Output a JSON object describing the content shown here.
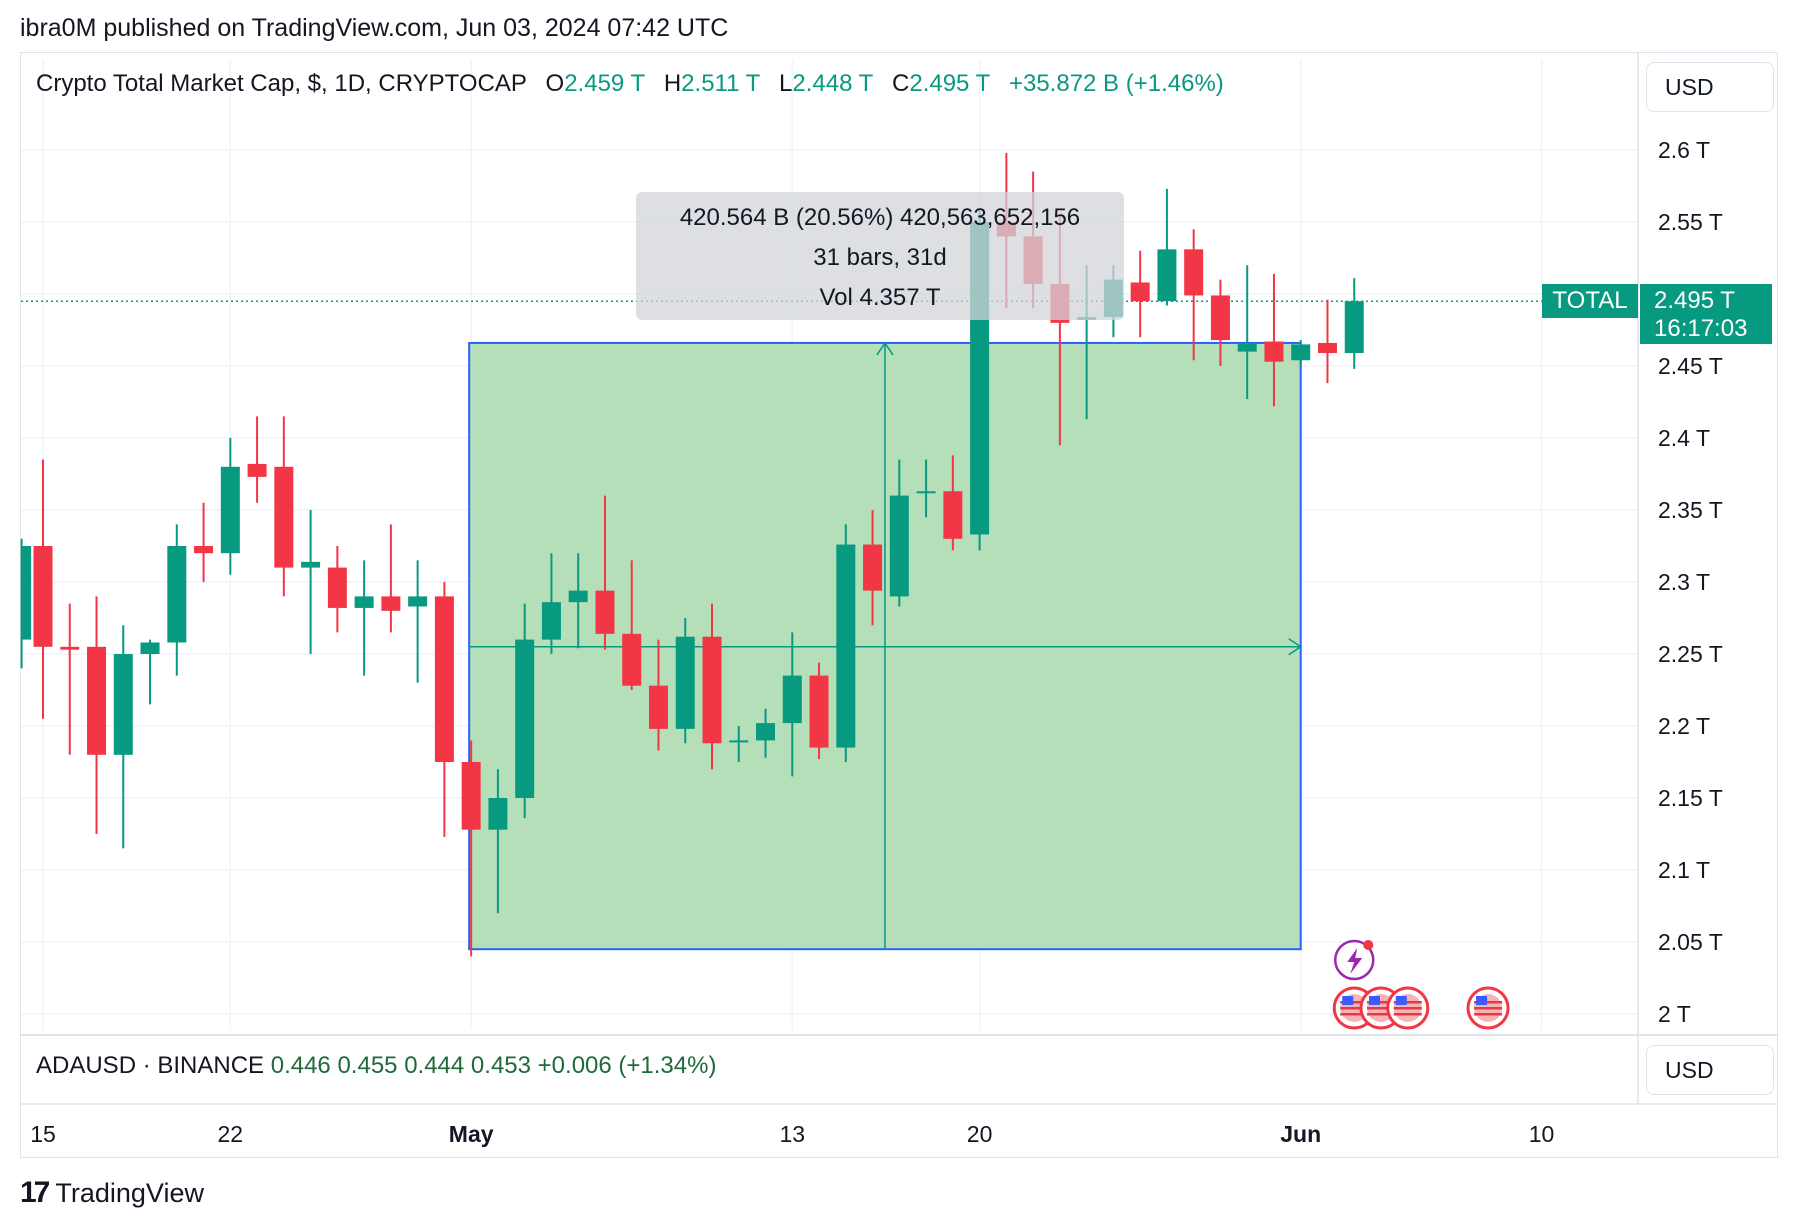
{
  "header": {
    "publisher_line": "ibra0M published on TradingView.com, Jun 03, 2024 07:42 UTC"
  },
  "legend": {
    "symbol": "Crypto Total Market Cap, $, 1D, CRYPTOCAP",
    "o_label": "O",
    "o": "2.459 T",
    "h_label": "H",
    "h": "2.511 T",
    "l_label": "L",
    "l": "2.448 T",
    "c_label": "C",
    "c": "2.495 T",
    "change": "+35.872 B (+1.46%)"
  },
  "currency": {
    "main": "USD",
    "sub": "USD"
  },
  "tooltip": {
    "line1": "420.564 B (20.56%) 420,563,652,156",
    "line2": "31 bars, 31d",
    "line3": "Vol 4.357 T"
  },
  "price_tags": {
    "symbol_label": "TOTAL",
    "last_price": "2.495 T",
    "countdown": "16:17:03"
  },
  "sub_legend": {
    "symbol": "ADAUSD · BINANCE",
    "o": "0.446",
    "h": "0.455",
    "l": "0.444",
    "c": "0.453",
    "change": "+0.006 (+1.34%)"
  },
  "footer": {
    "brand": "TradingView",
    "logo_mark": "17"
  },
  "colors": {
    "up": "#089981",
    "down": "#f23645",
    "range_fill": "#b5dfb8",
    "range_border": "#2962ff"
  },
  "chart_data": {
    "type": "candlestick",
    "title": "Crypto Total Market Cap, $, 1D, CRYPTOCAP",
    "unit": "T",
    "y_ticks": [
      "2.6 T",
      "2.55 T",
      "2.5 T",
      "2.45 T",
      "2.4 T",
      "2.35 T",
      "2.3 T",
      "2.25 T",
      "2.2 T",
      "2.15 T",
      "2.1 T",
      "2.05 T",
      "2 T"
    ],
    "y_tick_values": [
      2.6,
      2.55,
      2.5,
      2.45,
      2.4,
      2.35,
      2.3,
      2.25,
      2.2,
      2.15,
      2.1,
      2.05,
      2.0
    ],
    "ylim": [
      1.99,
      2.63
    ],
    "x_ticks": [
      {
        "label": "15",
        "day": 0,
        "bold": false
      },
      {
        "label": "22",
        "day": 7,
        "bold": false
      },
      {
        "label": "May",
        "day": 16,
        "bold": true
      },
      {
        "label": "13",
        "day": 28,
        "bold": false
      },
      {
        "label": "20",
        "day": 35,
        "bold": false
      },
      {
        "label": "Jun",
        "day": 47,
        "bold": true
      },
      {
        "label": "10",
        "day": 56,
        "bold": false
      }
    ],
    "x_range_days": [
      -0.8,
      59.5
    ],
    "grid": true,
    "last_price": 2.495,
    "candles": [
      {
        "day": -0.8,
        "o": 2.26,
        "h": 2.33,
        "l": 2.24,
        "c": 2.325
      },
      {
        "day": 0,
        "o": 2.325,
        "h": 2.385,
        "l": 2.205,
        "c": 2.255
      },
      {
        "day": 1,
        "o": 2.255,
        "h": 2.285,
        "l": 2.18,
        "c": 2.253
      },
      {
        "day": 2,
        "o": 2.255,
        "h": 2.29,
        "l": 2.125,
        "c": 2.18
      },
      {
        "day": 3,
        "o": 2.18,
        "h": 2.27,
        "l": 2.115,
        "c": 2.25
      },
      {
        "day": 4,
        "o": 2.25,
        "h": 2.26,
        "l": 2.215,
        "c": 2.258
      },
      {
        "day": 5,
        "o": 2.258,
        "h": 2.34,
        "l": 2.235,
        "c": 2.325
      },
      {
        "day": 6,
        "o": 2.325,
        "h": 2.355,
        "l": 2.3,
        "c": 2.32
      },
      {
        "day": 7,
        "o": 2.32,
        "h": 2.4,
        "l": 2.305,
        "c": 2.38
      },
      {
        "day": 8,
        "o": 2.382,
        "h": 2.415,
        "l": 2.355,
        "c": 2.373
      },
      {
        "day": 9,
        "o": 2.38,
        "h": 2.415,
        "l": 2.29,
        "c": 2.31
      },
      {
        "day": 10,
        "o": 2.31,
        "h": 2.35,
        "l": 2.25,
        "c": 2.314
      },
      {
        "day": 11,
        "o": 2.31,
        "h": 2.325,
        "l": 2.265,
        "c": 2.282
      },
      {
        "day": 12,
        "o": 2.282,
        "h": 2.315,
        "l": 2.235,
        "c": 2.29
      },
      {
        "day": 13,
        "o": 2.29,
        "h": 2.34,
        "l": 2.265,
        "c": 2.28
      },
      {
        "day": 14,
        "o": 2.283,
        "h": 2.315,
        "l": 2.23,
        "c": 2.29
      },
      {
        "day": 15,
        "o": 2.29,
        "h": 2.3,
        "l": 2.123,
        "c": 2.175
      },
      {
        "day": 16,
        "o": 2.175,
        "h": 2.19,
        "l": 2.04,
        "c": 2.128
      },
      {
        "day": 17,
        "o": 2.128,
        "h": 2.17,
        "l": 2.07,
        "c": 2.15
      },
      {
        "day": 18,
        "o": 2.15,
        "h": 2.285,
        "l": 2.136,
        "c": 2.26
      },
      {
        "day": 19,
        "o": 2.26,
        "h": 2.32,
        "l": 2.25,
        "c": 2.286
      },
      {
        "day": 20,
        "o": 2.286,
        "h": 2.32,
        "l": 2.254,
        "c": 2.294
      },
      {
        "day": 21,
        "o": 2.294,
        "h": 2.36,
        "l": 2.253,
        "c": 2.264
      },
      {
        "day": 22,
        "o": 2.264,
        "h": 2.315,
        "l": 2.225,
        "c": 2.228
      },
      {
        "day": 23,
        "o": 2.228,
        "h": 2.26,
        "l": 2.183,
        "c": 2.198
      },
      {
        "day": 24,
        "o": 2.198,
        "h": 2.275,
        "l": 2.188,
        "c": 2.262
      },
      {
        "day": 25,
        "o": 2.262,
        "h": 2.285,
        "l": 2.17,
        "c": 2.188
      },
      {
        "day": 26,
        "o": 2.19,
        "h": 2.2,
        "l": 2.175,
        "c": 2.19
      },
      {
        "day": 27,
        "o": 2.19,
        "h": 2.212,
        "l": 2.178,
        "c": 2.202
      },
      {
        "day": 28,
        "o": 2.202,
        "h": 2.265,
        "l": 2.165,
        "c": 2.235
      },
      {
        "day": 29,
        "o": 2.235,
        "h": 2.244,
        "l": 2.177,
        "c": 2.185
      },
      {
        "day": 30,
        "o": 2.185,
        "h": 2.34,
        "l": 2.175,
        "c": 2.326
      },
      {
        "day": 31,
        "o": 2.326,
        "h": 2.35,
        "l": 2.27,
        "c": 2.294
      },
      {
        "day": 32,
        "o": 2.29,
        "h": 2.385,
        "l": 2.283,
        "c": 2.36
      },
      {
        "day": 33,
        "o": 2.362,
        "h": 2.385,
        "l": 2.345,
        "c": 2.363
      },
      {
        "day": 34,
        "o": 2.363,
        "h": 2.388,
        "l": 2.322,
        "c": 2.33
      },
      {
        "day": 35,
        "o": 2.333,
        "h": 2.56,
        "l": 2.322,
        "c": 2.55
      },
      {
        "day": 36,
        "o": 2.55,
        "h": 2.598,
        "l": 2.49,
        "c": 2.54
      },
      {
        "day": 37,
        "o": 2.54,
        "h": 2.585,
        "l": 2.49,
        "c": 2.507
      },
      {
        "day": 38,
        "o": 2.507,
        "h": 2.555,
        "l": 2.395,
        "c": 2.48
      },
      {
        "day": 39,
        "o": 2.482,
        "h": 2.52,
        "l": 2.413,
        "c": 2.484
      },
      {
        "day": 40,
        "o": 2.484,
        "h": 2.52,
        "l": 2.47,
        "c": 2.51
      },
      {
        "day": 41,
        "o": 2.508,
        "h": 2.53,
        "l": 2.47,
        "c": 2.495
      },
      {
        "day": 42,
        "o": 2.495,
        "h": 2.573,
        "l": 2.492,
        "c": 2.531
      },
      {
        "day": 43,
        "o": 2.531,
        "h": 2.545,
        "l": 2.454,
        "c": 2.499
      },
      {
        "day": 44,
        "o": 2.499,
        "h": 2.51,
        "l": 2.45,
        "c": 2.468
      },
      {
        "day": 45,
        "o": 2.46,
        "h": 2.52,
        "l": 2.427,
        "c": 2.466
      },
      {
        "day": 46,
        "o": 2.467,
        "h": 2.514,
        "l": 2.422,
        "c": 2.453
      },
      {
        "day": 47,
        "o": 2.454,
        "h": 2.468,
        "l": 2.45,
        "c": 2.465
      },
      {
        "day": 48,
        "o": 2.466,
        "h": 2.496,
        "l": 2.438,
        "c": 2.459
      },
      {
        "day": 49,
        "o": 2.459,
        "h": 2.511,
        "l": 2.448,
        "c": 2.495
      }
    ],
    "price_range": {
      "start_day": 16,
      "end_day": 47,
      "low": 2.045,
      "high": 2.466,
      "mid": 2.255
    },
    "events": {
      "lightning_day": 49,
      "flag_days": [
        49,
        50,
        51,
        54
      ]
    }
  }
}
